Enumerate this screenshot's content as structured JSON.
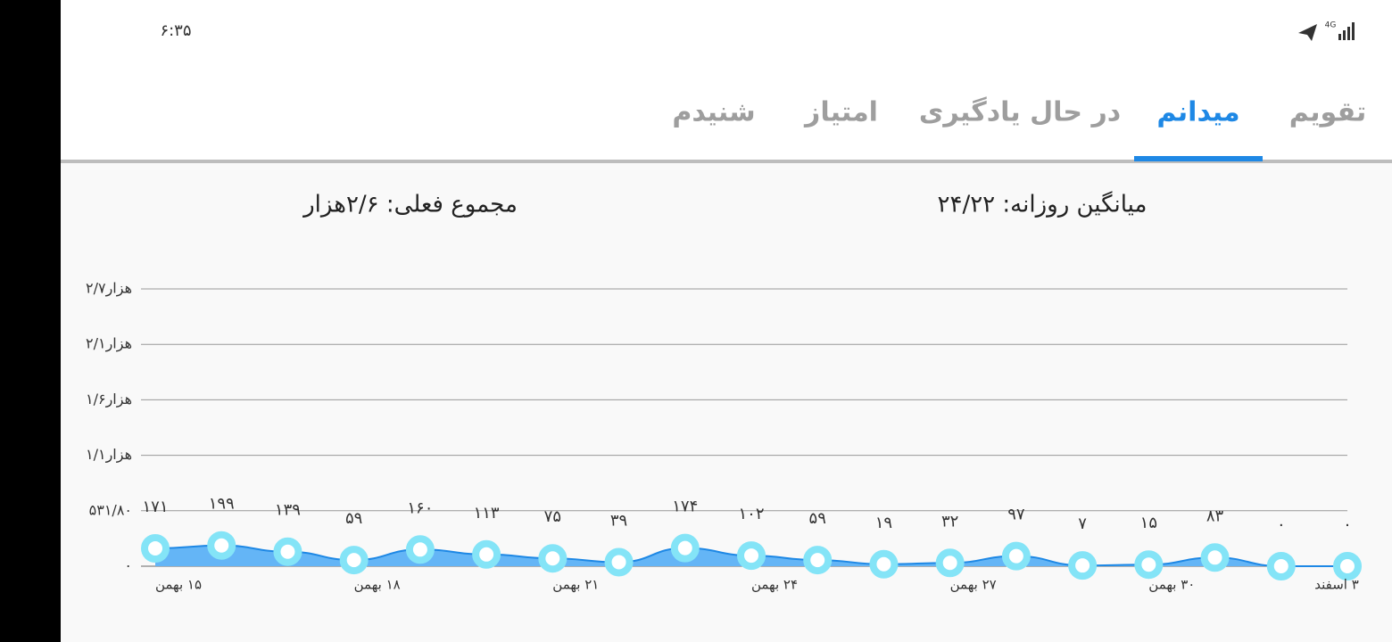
{
  "status_bar": {
    "time": "۶:۳۵",
    "network": "4G"
  },
  "tabs": [
    "تقویم",
    "میدانم",
    "در حال یادگیری",
    "امتیاز",
    "شنیدم"
  ],
  "selected_tab": 1,
  "summary": {
    "daily_average": "میانگین روزانه: ۲۴/۲۲",
    "current_total": "مجموع فعلی: ۲/۶هزار"
  },
  "chart_data": {
    "type": "area",
    "categories": [
      "۱۵ بهمن",
      null,
      null,
      "۱۸ بهمن",
      null,
      null,
      "۲۱ بهمن",
      null,
      null,
      "۲۴ بهمن",
      null,
      null,
      "۲۷ بهمن",
      null,
      null,
      "۳۰ بهمن",
      null,
      null,
      "۳ اسفند"
    ],
    "values": [
      171,
      199,
      139,
      59,
      160,
      113,
      75,
      39,
      174,
      102,
      59,
      19,
      32,
      97,
      7,
      15,
      83,
      0,
      0
    ],
    "value_labels": [
      "۱۷۱",
      "۱۹۹",
      "۱۳۹",
      "۵۹",
      "۱۶۰",
      "۱۱۳",
      "۷۵",
      "۳۹",
      "۱۷۴",
      "۱۰۲",
      "۵۹",
      "۱۹",
      "۳۲",
      "۹۷",
      "۷",
      "۱۵",
      "۸۳",
      "۰",
      "۰"
    ],
    "color": "#1e88e5",
    "fill_color": "#64b5f6",
    "marker_color": "#84e4f7",
    "ylim": [
      0,
      2659
    ],
    "yticks": [
      {
        "value": 0,
        "label": "۰"
      },
      {
        "value": 531.8,
        "label": "۵۳۱/۸۰"
      },
      {
        "value": 1063.6,
        "label": "۱/۱هزار"
      },
      {
        "value": 1595.4,
        "label": "۱/۶هزار"
      },
      {
        "value": 2127.2,
        "label": "۲/۱هزار"
      },
      {
        "value": 2659,
        "label": "۲/۷هزار"
      }
    ],
    "grid": true
  }
}
